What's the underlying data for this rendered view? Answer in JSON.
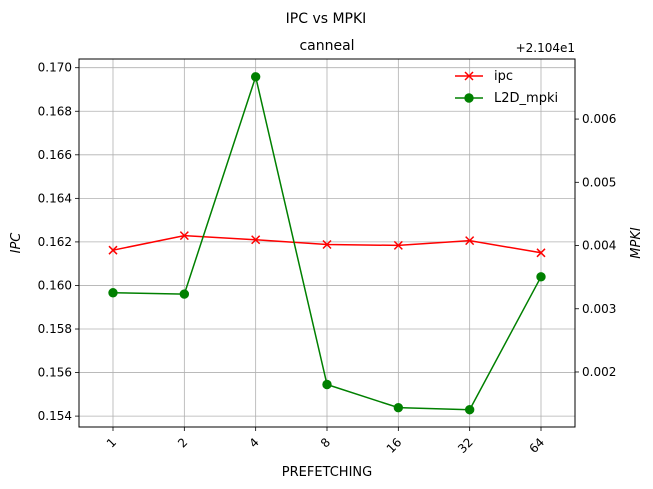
{
  "chart_data": {
    "type": "line",
    "suptitle": "IPC vs MPKI",
    "title": "canneal",
    "xlabel": "PREFETCHING",
    "ylabel_left": "IPC",
    "ylabel_right": "MPKI",
    "right_offset_text": "+2.104e1",
    "categories": [
      "1",
      "2",
      "4",
      "8",
      "16",
      "32",
      "64"
    ],
    "ylim_left": [
      0.1535,
      0.1704
    ],
    "yticks_left": [
      "0.154",
      "0.156",
      "0.158",
      "0.160",
      "0.162",
      "0.164",
      "0.166",
      "0.168",
      "0.170"
    ],
    "ylim_right": [
      0.00113,
      0.00695
    ],
    "yticks_right": [
      "0.002",
      "0.003",
      "0.004",
      "0.005",
      "0.006"
    ],
    "grid": true,
    "legend_position": "upper-right",
    "series": [
      {
        "name": "ipc",
        "axis": "left",
        "color": "#ff0000",
        "marker": "x",
        "values": [
          0.16162,
          0.16229,
          0.1621,
          0.16188,
          0.16184,
          0.16206,
          0.1615
        ]
      },
      {
        "name": "L2D_mpki",
        "axis": "right",
        "color": "#008000",
        "marker": "o",
        "values": [
          0.003253,
          0.003232,
          0.006669,
          0.001802,
          0.001436,
          0.001403,
          0.003505
        ]
      }
    ]
  }
}
